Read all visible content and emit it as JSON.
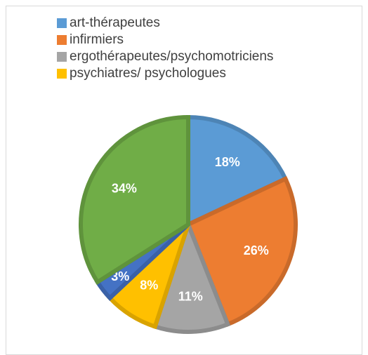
{
  "chart_data": {
    "type": "pie",
    "categories": [
      "art-thérapeutes",
      "infirmiers",
      "ergothérapeutes/psychomotriciens",
      "psychiatres/ psychologues",
      null,
      null
    ],
    "values": [
      18,
      26,
      11,
      8,
      3,
      34
    ],
    "value_labels": [
      "18%",
      "26%",
      "11%",
      "8%",
      "3%",
      "34%"
    ],
    "colors": [
      "#5b9bd5",
      "#ed7d31",
      "#a5a5a5",
      "#ffc000",
      "#4472c4",
      "#70ad47"
    ],
    "legend": "top"
  }
}
